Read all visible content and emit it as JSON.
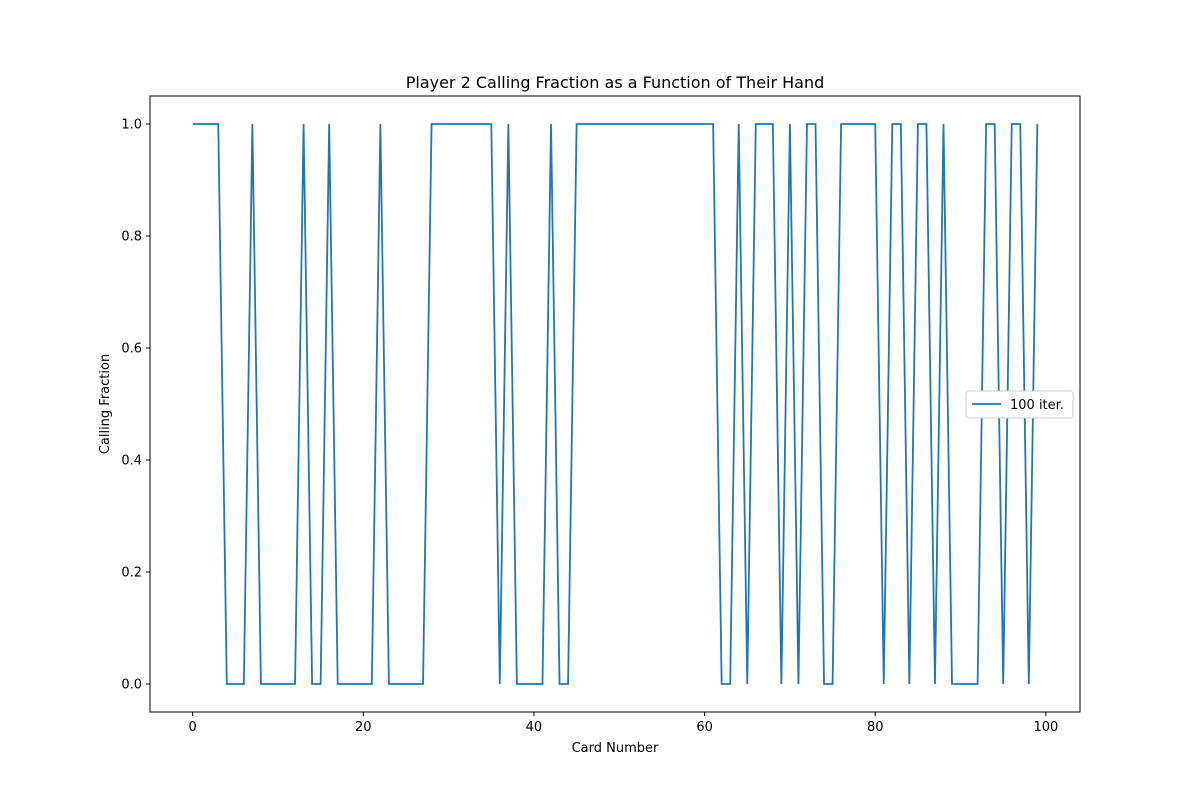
{
  "chart_data": {
    "type": "line",
    "title": "Player 2 Calling Fraction as a Function of Their Hand",
    "xlabel": "Card Number",
    "ylabel": "Calling Fraction",
    "xlim": [
      -5,
      104
    ],
    "ylim": [
      -0.05,
      1.05
    ],
    "xticks": [
      0,
      20,
      40,
      60,
      80,
      100
    ],
    "xtick_labels": [
      "0",
      "20",
      "40",
      "60",
      "80",
      "100"
    ],
    "yticks": [
      0.0,
      0.2,
      0.4,
      0.6,
      0.8,
      1.0
    ],
    "ytick_labels": [
      "0.0",
      "0.2",
      "0.4",
      "0.6",
      "0.8",
      "1.0"
    ],
    "grid": false,
    "legend_position": "center-right",
    "colors": {
      "series": "#1f77b4"
    },
    "series": [
      {
        "name": "100 iter.",
        "x": [
          0,
          1,
          2,
          3,
          4,
          5,
          6,
          7,
          8,
          9,
          10,
          11,
          12,
          13,
          14,
          15,
          16,
          17,
          18,
          19,
          20,
          21,
          22,
          23,
          24,
          25,
          26,
          27,
          28,
          29,
          30,
          31,
          32,
          33,
          34,
          35,
          36,
          37,
          38,
          39,
          40,
          41,
          42,
          43,
          44,
          45,
          46,
          47,
          48,
          49,
          50,
          51,
          52,
          53,
          54,
          55,
          56,
          57,
          58,
          59,
          60,
          61,
          62,
          63,
          64,
          65,
          66,
          67,
          68,
          69,
          70,
          71,
          72,
          73,
          74,
          75,
          76,
          77,
          78,
          79,
          80,
          81,
          82,
          83,
          84,
          85,
          86,
          87,
          88,
          89,
          90,
          91,
          92,
          93,
          94,
          95,
          96,
          97,
          98,
          99
        ],
        "values": [
          1,
          1,
          1,
          1,
          0,
          0,
          0,
          1,
          0,
          0,
          0,
          0,
          0,
          1,
          0,
          0,
          1,
          0,
          0,
          0,
          0,
          0,
          1,
          0,
          0,
          0,
          0,
          0,
          1,
          1,
          1,
          1,
          1,
          1,
          1,
          1,
          0,
          1,
          0,
          0,
          0,
          0,
          1,
          0,
          0,
          1,
          1,
          1,
          1,
          1,
          1,
          1,
          1,
          1,
          1,
          1,
          1,
          1,
          1,
          1,
          1,
          1,
          0,
          0,
          1,
          0,
          1,
          1,
          1,
          0,
          1,
          0,
          1,
          1,
          0,
          0,
          1,
          1,
          1,
          1,
          1,
          0,
          1,
          1,
          0,
          1,
          1,
          0,
          1,
          0,
          0,
          0,
          0,
          1,
          1,
          0,
          1,
          1,
          0,
          1
        ]
      }
    ]
  }
}
